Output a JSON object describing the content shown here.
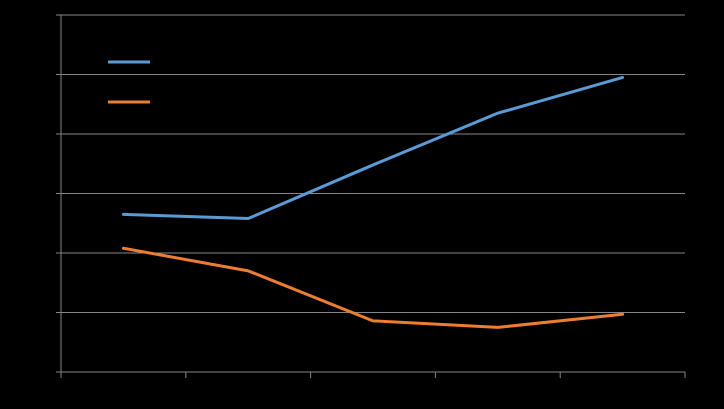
{
  "chart_data": {
    "type": "line",
    "x": [
      1,
      2,
      3,
      4,
      5
    ],
    "series": [
      {
        "color": "#5B9BD5",
        "values": [
          2.65,
          2.58,
          3.48,
          4.35,
          4.95
        ]
      },
      {
        "color": "#ED7D31",
        "values": [
          2.08,
          1.7,
          0.86,
          0.75,
          0.97
        ]
      }
    ],
    "xlim": [
      0.5,
      5.5
    ],
    "ylim": [
      0,
      6
    ],
    "grid": true,
    "legend": "top-left",
    "gridline_color": "#868686",
    "axis_color": "#868686",
    "background": "#000000"
  }
}
